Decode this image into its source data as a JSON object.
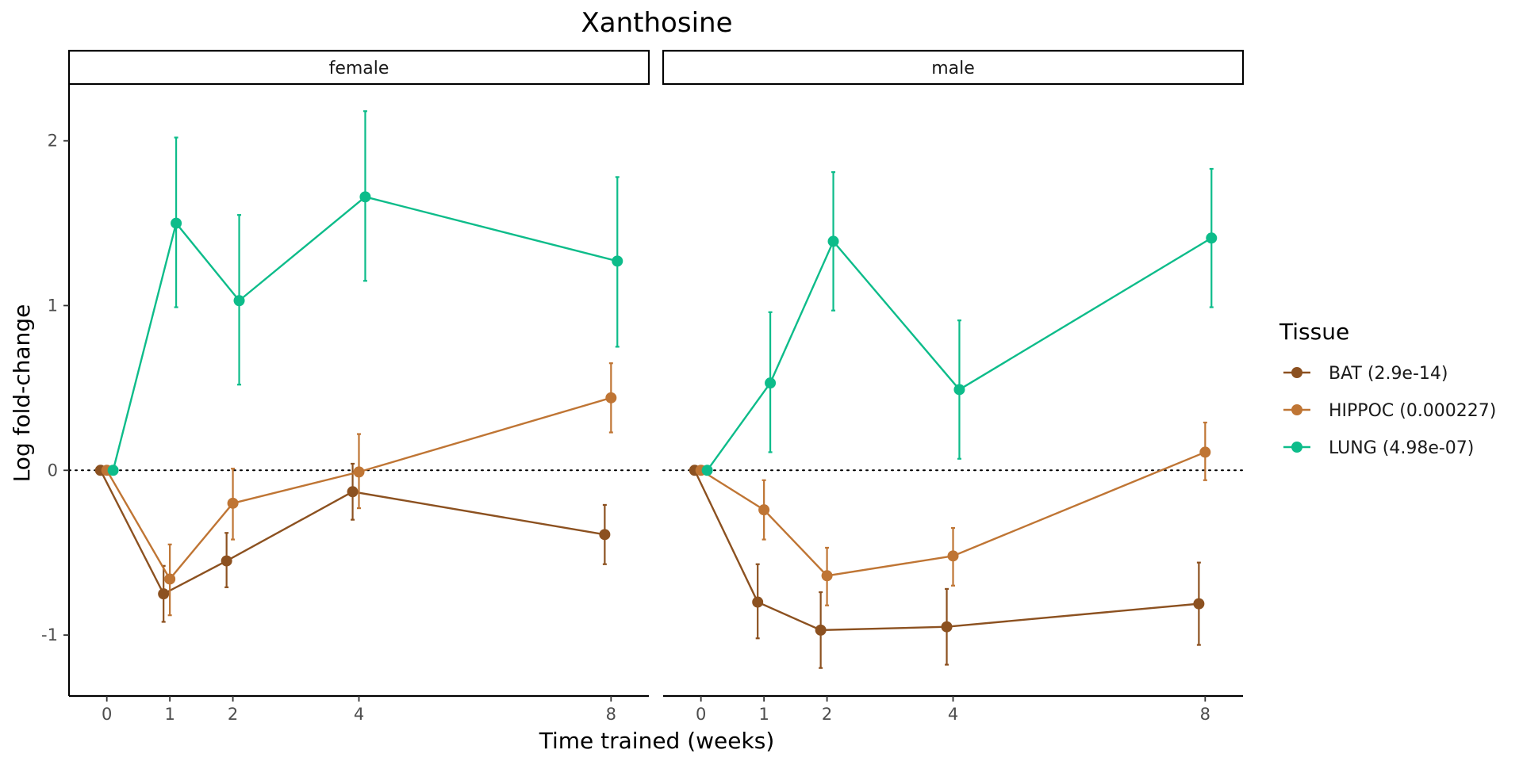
{
  "chart_data": {
    "type": "line",
    "title": "Xanthosine",
    "xlabel": "Time trained (weeks)",
    "ylabel": "Log fold-change",
    "x_ticks": [
      0,
      1,
      2,
      4,
      8
    ],
    "y_ticks": [
      -1,
      0,
      1,
      2
    ],
    "xlim": [
      -0.6,
      8.6
    ],
    "ylim": [
      -1.37,
      2.34
    ],
    "reference_line": {
      "y": 0,
      "style": "dotted"
    },
    "legend": {
      "title": "Tissue",
      "position": "right"
    },
    "colors": {
      "BAT": "#8C5120",
      "HIPPOC": "#BF7534",
      "LUNG": "#0DBC8A"
    },
    "panels": [
      {
        "label": "female",
        "series": [
          {
            "name": "BAT (2.9e-14)",
            "key": "BAT",
            "dodge": -0.1,
            "points": [
              {
                "x": 0,
                "y": 0,
                "lo": 0,
                "hi": 0
              },
              {
                "x": 1,
                "y": -0.75,
                "lo": -0.92,
                "hi": -0.58
              },
              {
                "x": 2,
                "y": -0.55,
                "lo": -0.71,
                "hi": -0.38
              },
              {
                "x": 4,
                "y": -0.13,
                "lo": -0.3,
                "hi": 0.04
              },
              {
                "x": 8,
                "y": -0.39,
                "lo": -0.57,
                "hi": -0.21
              }
            ]
          },
          {
            "name": "HIPPOC (0.000227)",
            "key": "HIPPOC",
            "dodge": 0,
            "points": [
              {
                "x": 0,
                "y": 0,
                "lo": 0,
                "hi": 0
              },
              {
                "x": 1,
                "y": -0.66,
                "lo": -0.88,
                "hi": -0.45
              },
              {
                "x": 2,
                "y": -0.2,
                "lo": -0.42,
                "hi": 0.01
              },
              {
                "x": 4,
                "y": -0.01,
                "lo": -0.23,
                "hi": 0.22
              },
              {
                "x": 8,
                "y": 0.44,
                "lo": 0.23,
                "hi": 0.65
              }
            ]
          },
          {
            "name": "LUNG (4.98e-07)",
            "key": "LUNG",
            "dodge": 0.1,
            "points": [
              {
                "x": 0,
                "y": 0,
                "lo": 0,
                "hi": 0
              },
              {
                "x": 1,
                "y": 1.5,
                "lo": 0.99,
                "hi": 2.02
              },
              {
                "x": 2,
                "y": 1.03,
                "lo": 0.52,
                "hi": 1.55
              },
              {
                "x": 4,
                "y": 1.66,
                "lo": 1.15,
                "hi": 2.18
              },
              {
                "x": 8,
                "y": 1.27,
                "lo": 0.75,
                "hi": 1.78
              }
            ]
          }
        ]
      },
      {
        "label": "male",
        "series": [
          {
            "name": "BAT (2.9e-14)",
            "key": "BAT",
            "dodge": -0.1,
            "points": [
              {
                "x": 0,
                "y": 0,
                "lo": 0,
                "hi": 0
              },
              {
                "x": 1,
                "y": -0.8,
                "lo": -1.02,
                "hi": -0.57
              },
              {
                "x": 2,
                "y": -0.97,
                "lo": -1.2,
                "hi": -0.74
              },
              {
                "x": 4,
                "y": -0.95,
                "lo": -1.18,
                "hi": -0.72
              },
              {
                "x": 8,
                "y": -0.81,
                "lo": -1.06,
                "hi": -0.56
              }
            ]
          },
          {
            "name": "HIPPOC (0.000227)",
            "key": "HIPPOC",
            "dodge": 0,
            "points": [
              {
                "x": 0,
                "y": 0,
                "lo": 0,
                "hi": 0
              },
              {
                "x": 1,
                "y": -0.24,
                "lo": -0.42,
                "hi": -0.06
              },
              {
                "x": 2,
                "y": -0.64,
                "lo": -0.82,
                "hi": -0.47
              },
              {
                "x": 4,
                "y": -0.52,
                "lo": -0.7,
                "hi": -0.35
              },
              {
                "x": 8,
                "y": 0.11,
                "lo": -0.06,
                "hi": 0.29
              }
            ]
          },
          {
            "name": "LUNG (4.98e-07)",
            "key": "LUNG",
            "dodge": 0.1,
            "points": [
              {
                "x": 0,
                "y": 0,
                "lo": 0,
                "hi": 0
              },
              {
                "x": 1,
                "y": 0.53,
                "lo": 0.11,
                "hi": 0.96
              },
              {
                "x": 2,
                "y": 1.39,
                "lo": 0.97,
                "hi": 1.81
              },
              {
                "x": 4,
                "y": 0.49,
                "lo": 0.07,
                "hi": 0.91
              },
              {
                "x": 8,
                "y": 1.41,
                "lo": 0.99,
                "hi": 1.83
              }
            ]
          }
        ]
      }
    ]
  }
}
